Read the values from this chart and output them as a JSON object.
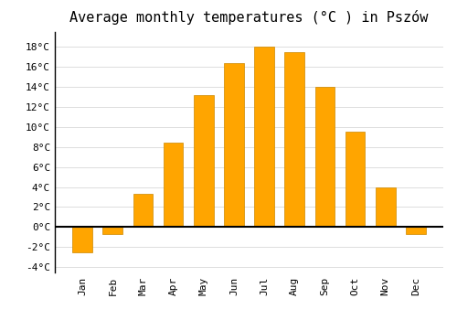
{
  "title": "Average monthly temperatures (°C ) in Pszów",
  "months": [
    "Jan",
    "Feb",
    "Mar",
    "Apr",
    "May",
    "Jun",
    "Jul",
    "Aug",
    "Sep",
    "Oct",
    "Nov",
    "Dec"
  ],
  "values": [
    -2.5,
    -0.7,
    3.3,
    8.4,
    13.2,
    16.4,
    18.0,
    17.5,
    14.0,
    9.5,
    4.0,
    -0.7
  ],
  "bar_color": "#FFA500",
  "bar_edge_color": "#CC8800",
  "background_color": "#FFFFFF",
  "grid_color": "#DDDDDD",
  "zero_line_color": "#000000",
  "ylim": [
    -4.5,
    19.5
  ],
  "yticks": [
    -4,
    -2,
    0,
    2,
    4,
    6,
    8,
    10,
    12,
    14,
    16,
    18
  ],
  "title_fontsize": 11,
  "tick_fontsize": 8,
  "font_family": "monospace"
}
